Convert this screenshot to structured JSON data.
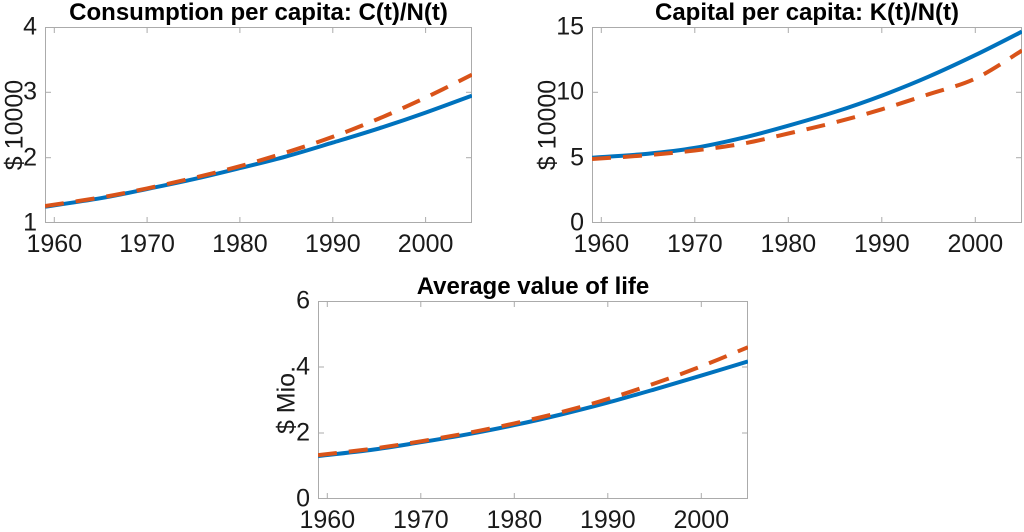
{
  "style": {
    "background": "#ffffff",
    "axis_color": "#ababab",
    "tick_label_color": "#1a1a1a",
    "title_color": "#000000",
    "line_blue": "#0072bd",
    "line_orange": "#d95319"
  },
  "chart_data": [
    {
      "type": "line",
      "title": "Consumption per capita: C(t)/N(t)",
      "xlabel": "",
      "ylabel": "$ 10000",
      "xlim": [
        1959,
        2005
      ],
      "ylim": [
        1,
        4
      ],
      "xticks": [
        1960,
        1970,
        1980,
        1990,
        2000
      ],
      "yticks": [
        1,
        2,
        3,
        4
      ],
      "grid": false,
      "legend": "none",
      "x": [
        1959,
        1965,
        1970,
        1975,
        1980,
        1985,
        1990,
        1995,
        2000,
        2005
      ],
      "series": [
        {
          "id": "solid-blue",
          "line_style": "solid",
          "color": "#0072bd",
          "values": [
            1.25,
            1.38,
            1.52,
            1.67,
            1.84,
            2.02,
            2.23,
            2.45,
            2.69,
            2.95
          ]
        },
        {
          "id": "dashed-orange",
          "line_style": "dashed",
          "color": "#d95319",
          "values": [
            1.26,
            1.39,
            1.53,
            1.69,
            1.87,
            2.08,
            2.32,
            2.6,
            2.92,
            3.27
          ]
        }
      ]
    },
    {
      "type": "line",
      "title": "Capital per capita: K(t)/N(t)",
      "xlabel": "",
      "ylabel": "$ 10000",
      "xlim": [
        1959,
        2005
      ],
      "ylim": [
        0,
        15
      ],
      "xticks": [
        1960,
        1970,
        1980,
        1990,
        2000
      ],
      "yticks": [
        0,
        5,
        10,
        15
      ],
      "grid": false,
      "legend": "none",
      "x": [
        1959,
        1965,
        1970,
        1975,
        1980,
        1985,
        1990,
        1995,
        2000,
        2005
      ],
      "series": [
        {
          "id": "solid-blue",
          "line_style": "solid",
          "color": "#0072bd",
          "values": [
            5.0,
            5.3,
            5.75,
            6.5,
            7.45,
            8.5,
            9.75,
            11.2,
            12.85,
            14.65
          ]
        },
        {
          "id": "dashed-orange",
          "line_style": "dashed",
          "color": "#d95319",
          "values": [
            4.9,
            5.2,
            5.55,
            6.05,
            6.85,
            7.7,
            8.7,
            9.85,
            11.05,
            13.2
          ]
        }
      ]
    },
    {
      "type": "line",
      "title": "Average value of life",
      "xlabel": "",
      "ylabel": "$ Mio.",
      "xlim": [
        1959,
        2005
      ],
      "ylim": [
        0,
        6
      ],
      "xticks": [
        1960,
        1970,
        1980,
        1990,
        2000
      ],
      "yticks": [
        0,
        2,
        4,
        6
      ],
      "grid": false,
      "legend": "none",
      "x": [
        1959,
        1965,
        1970,
        1975,
        1980,
        1985,
        1990,
        1995,
        2000,
        2005
      ],
      "series": [
        {
          "id": "solid-blue",
          "line_style": "solid",
          "color": "#0072bd",
          "values": [
            1.3,
            1.5,
            1.72,
            1.96,
            2.24,
            2.56,
            2.92,
            3.32,
            3.74,
            4.17
          ]
        },
        {
          "id": "dashed-orange",
          "line_style": "dashed",
          "color": "#d95319",
          "values": [
            1.33,
            1.53,
            1.75,
            2.0,
            2.29,
            2.63,
            3.03,
            3.5,
            4.02,
            4.6
          ]
        }
      ]
    }
  ]
}
